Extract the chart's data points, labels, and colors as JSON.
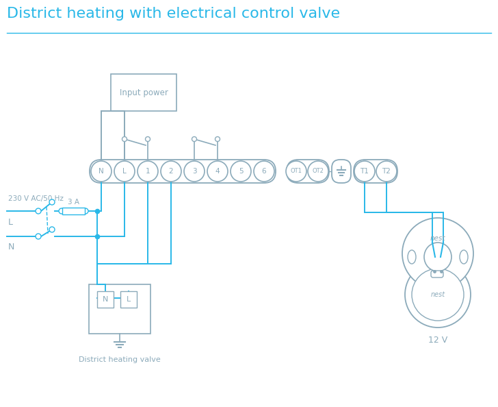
{
  "title": "District heating with electrical control valve",
  "title_color": "#29b8e8",
  "title_fontsize": 16,
  "bg_color": "#ffffff",
  "wire_color": "#29b8e8",
  "comp_color": "#8baaba",
  "text_color": "#8baaba",
  "terminal_labels": [
    "N",
    "L",
    "1",
    "2",
    "3",
    "4",
    "5",
    "6"
  ],
  "ot_labels": [
    "OT1",
    "OT2"
  ],
  "t_labels": [
    "T1",
    "T2"
  ],
  "label_230v": "230 V AC/50 Hz",
  "label_L": "L",
  "label_N": "N",
  "label_3A": "3 A",
  "label_input_power": "Input power",
  "label_valve": "District heating valve",
  "label_12v": "12 V",
  "label_nest": "nest",
  "fig_w": 7.28,
  "fig_h": 5.94,
  "dpi": 100
}
